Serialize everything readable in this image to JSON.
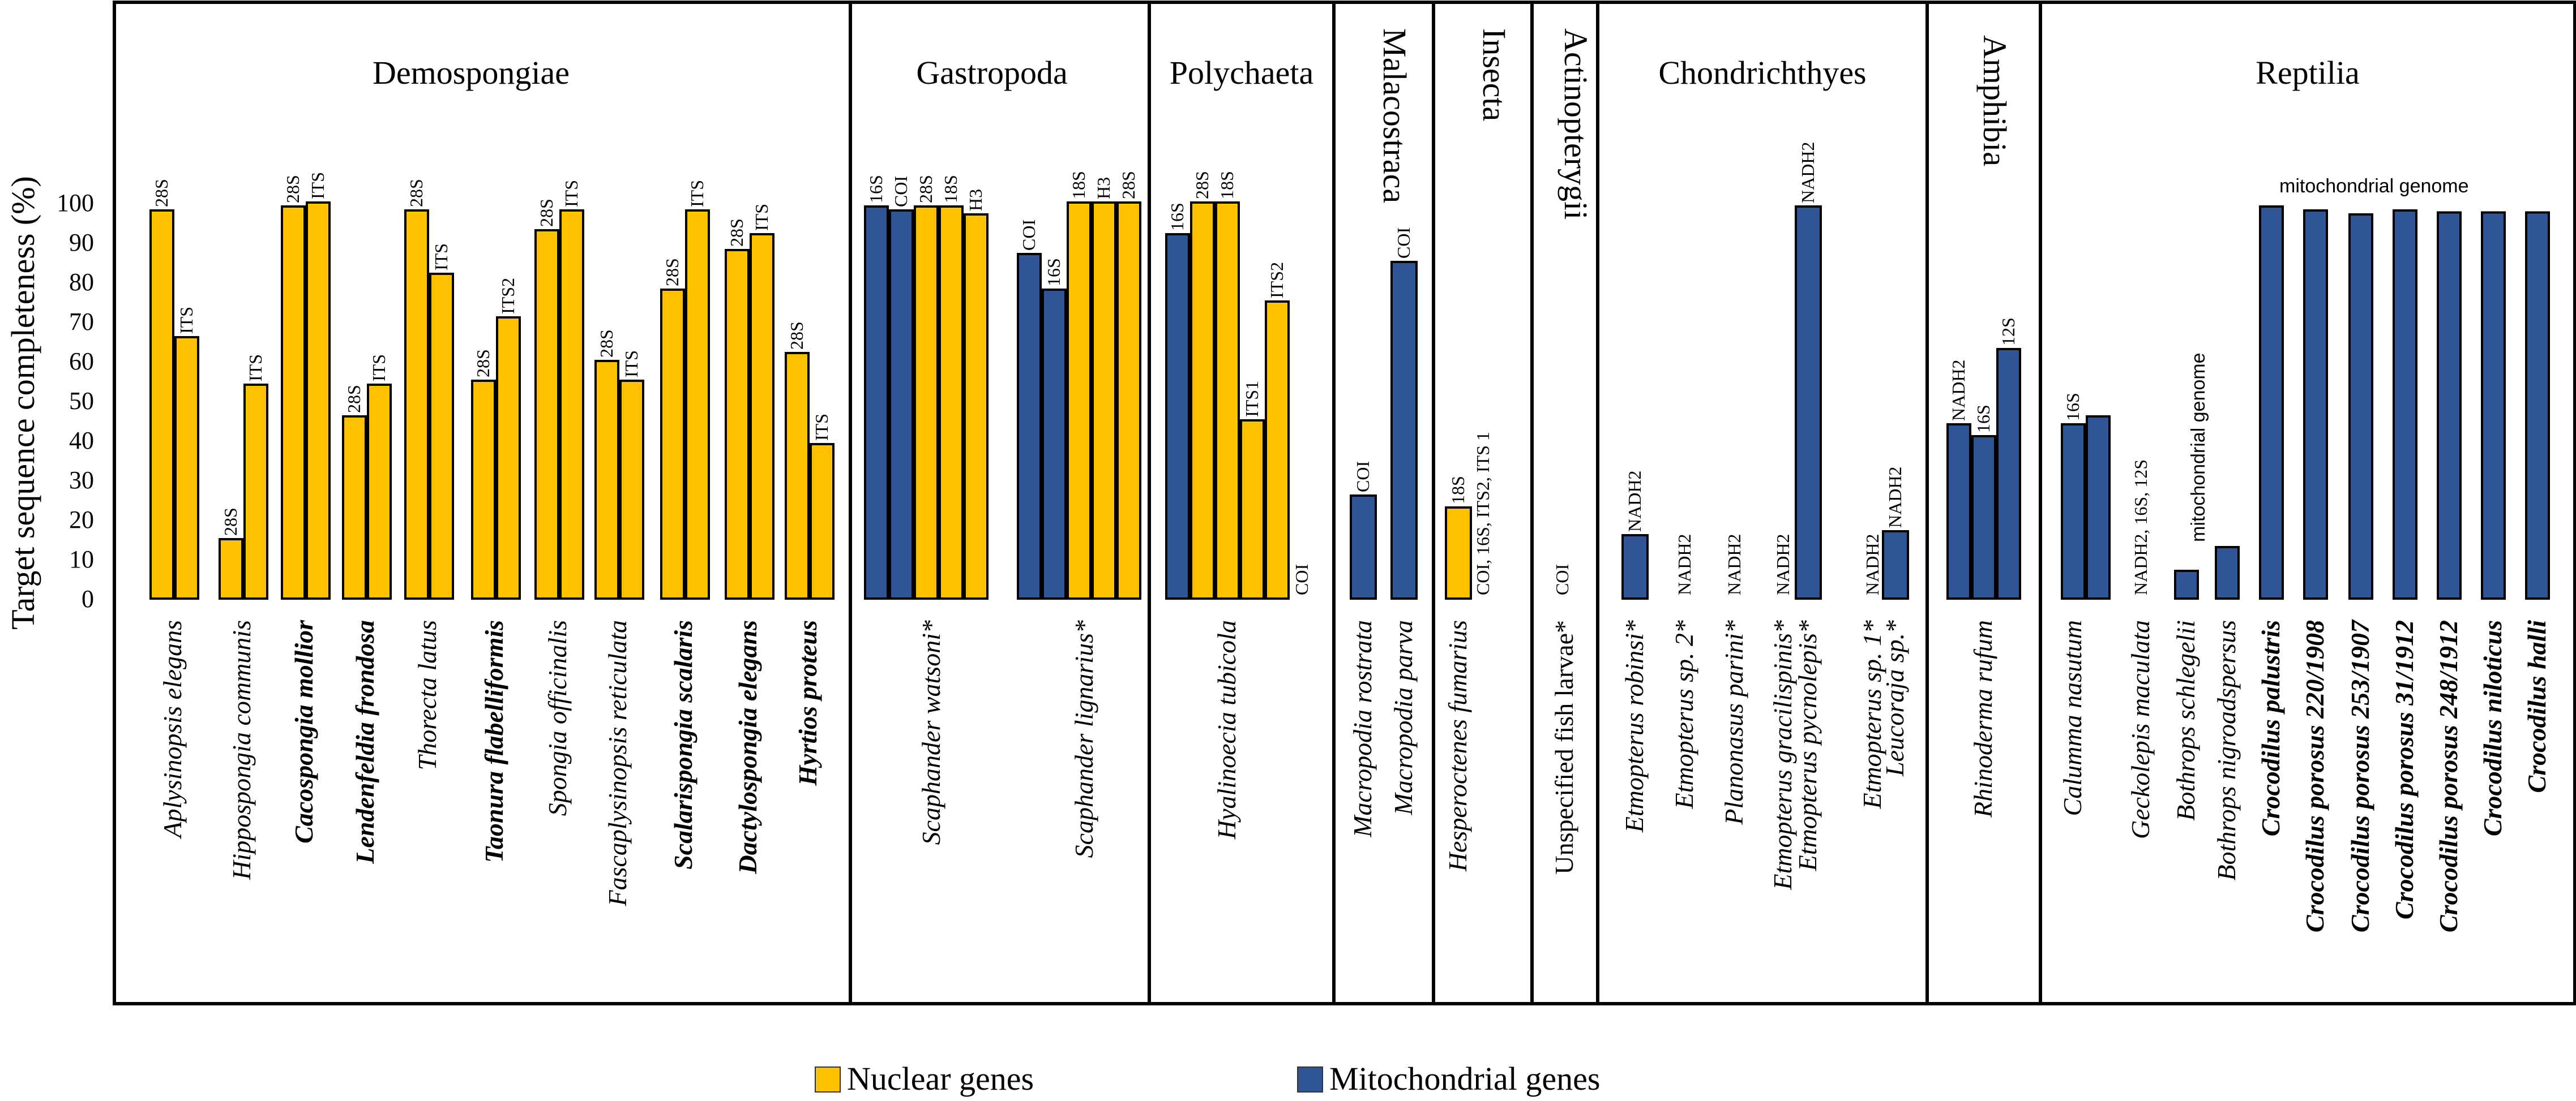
{
  "chart_data": {
    "type": "bar",
    "ylabel": "Target sequence completeness (%)",
    "ylim": [
      0,
      100
    ],
    "yticks": [
      0,
      10,
      20,
      30,
      40,
      50,
      60,
      70,
      80,
      90,
      100
    ],
    "colors": {
      "nuclear": "#FFC000",
      "mito": "#2F5597"
    },
    "legend": [
      {
        "key": "nuclear",
        "label": "Nuclear genes"
      },
      {
        "key": "mito",
        "label": "Mitochondrial genes"
      }
    ],
    "groups": [
      {
        "name": "Demospongiae",
        "taxa": [
          {
            "name": "Aplysinopsis elegans",
            "bold": false,
            "bars": [
              {
                "gene": "28S",
                "value": 98,
                "type": "nuclear"
              },
              {
                "gene": "ITS",
                "value": 66,
                "type": "nuclear"
              }
            ]
          },
          {
            "name": "Hippospongia communis",
            "bold": false,
            "bars": [
              {
                "gene": "28S",
                "value": 15,
                "type": "nuclear"
              },
              {
                "gene": "ITS",
                "value": 54,
                "type": "nuclear"
              }
            ]
          },
          {
            "name": "Cacospongia mollior",
            "bold": true,
            "bars": [
              {
                "gene": "28S",
                "value": 99,
                "type": "nuclear"
              },
              {
                "gene": "ITS",
                "value": 100,
                "type": "nuclear"
              }
            ]
          },
          {
            "name": "Lendenfeldia frondosa",
            "bold": true,
            "bars": [
              {
                "gene": "28S",
                "value": 46,
                "type": "nuclear"
              },
              {
                "gene": "ITS",
                "value": 54,
                "type": "nuclear"
              }
            ]
          },
          {
            "name": "Thorecta latus",
            "bold": false,
            "bars": [
              {
                "gene": "28S",
                "value": 98,
                "type": "nuclear"
              },
              {
                "gene": "ITS",
                "value": 82,
                "type": "nuclear"
              }
            ]
          },
          {
            "name": "Taonura flabelliformis",
            "bold": true,
            "bars": [
              {
                "gene": "28S",
                "value": 55,
                "type": "nuclear"
              },
              {
                "gene": "ITS2",
                "value": 71,
                "type": "nuclear"
              }
            ]
          },
          {
            "name": "Spongia officinalis",
            "bold": false,
            "bars": [
              {
                "gene": "28S",
                "value": 93,
                "type": "nuclear"
              },
              {
                "gene": "ITS",
                "value": 98,
                "type": "nuclear"
              }
            ]
          },
          {
            "name": "Fascaplysinopsis reticulata",
            "bold": false,
            "bars": [
              {
                "gene": "28S",
                "value": 60,
                "type": "nuclear"
              },
              {
                "gene": "ITS",
                "value": 55,
                "type": "nuclear"
              }
            ]
          },
          {
            "name": "Scalarispongia scalaris",
            "bold": true,
            "bars": [
              {
                "gene": "28S",
                "value": 78,
                "type": "nuclear"
              },
              {
                "gene": "ITS",
                "value": 98,
                "type": "nuclear"
              }
            ]
          },
          {
            "name": "Dactylospongia elegans",
            "bold": true,
            "bars": [
              {
                "gene": "28S",
                "value": 88,
                "type": "nuclear"
              },
              {
                "gene": "ITS",
                "value": 92,
                "type": "nuclear"
              }
            ]
          },
          {
            "name": "Hyrtios proteus",
            "bold": true,
            "bars": [
              {
                "gene": "28S",
                "value": 62,
                "type": "nuclear"
              },
              {
                "gene": "ITS",
                "value": 39,
                "type": "nuclear"
              }
            ]
          }
        ]
      },
      {
        "name": "Gastropoda",
        "taxa": [
          {
            "name": "Scaphander watsoni*",
            "bold": false,
            "bars": [
              {
                "gene": "16S",
                "value": 99,
                "type": "mito"
              },
              {
                "gene": "COI",
                "value": 98,
                "type": "mito"
              },
              {
                "gene": "28S",
                "value": 99,
                "type": "nuclear"
              },
              {
                "gene": "18S",
                "value": 99,
                "type": "nuclear"
              },
              {
                "gene": "H3",
                "value": 97,
                "type": "nuclear"
              }
            ]
          },
          {
            "name": "Scaphander lignarius*",
            "bold": false,
            "bars": [
              {
                "gene": "COI",
                "value": 87,
                "type": "mito"
              },
              {
                "gene": "16S",
                "value": 78,
                "type": "mito"
              },
              {
                "gene": "18S",
                "value": 100,
                "type": "nuclear"
              },
              {
                "gene": "H3",
                "value": 100,
                "type": "nuclear"
              },
              {
                "gene": "28S",
                "value": 100,
                "type": "nuclear"
              }
            ]
          }
        ]
      },
      {
        "name": "Polychaeta",
        "taxa": [
          {
            "name": "Hyalinoecia tubicola",
            "bold": false,
            "bars": [
              {
                "gene": "16S",
                "value": 92,
                "type": "mito"
              },
              {
                "gene": "28S",
                "value": 100,
                "type": "nuclear"
              },
              {
                "gene": "18S",
                "value": 100,
                "type": "nuclear"
              },
              {
                "gene": "ITS1",
                "value": 45,
                "type": "nuclear"
              },
              {
                "gene": "ITS2",
                "value": 75,
                "type": "nuclear"
              },
              {
                "gene": "COI",
                "value": 0,
                "type": "mito"
              }
            ]
          }
        ]
      },
      {
        "name": "Malacostraca",
        "taxa": [
          {
            "name": "Macropodia rostrata",
            "bold": false,
            "bars": [
              {
                "gene": "COI",
                "value": 26,
                "type": "mito"
              }
            ]
          },
          {
            "name": "Macropodia parva",
            "bold": false,
            "bars": [
              {
                "gene": "COI",
                "value": 85,
                "type": "mito"
              }
            ]
          }
        ]
      },
      {
        "name": "Insecta",
        "taxa": [
          {
            "name": "Hesperoctenes fumarius",
            "bold": false,
            "bars": [
              {
                "gene": "18S",
                "value": 23,
                "type": "nuclear"
              },
              {
                "gene": "COI, 16S, ITS2, ITS 1",
                "value": 0,
                "type": "nuclear"
              }
            ]
          }
        ]
      },
      {
        "name": "Actinopterygii",
        "taxa": [
          {
            "name": "Unspecified fish larvae*",
            "bold": false,
            "bars": [
              {
                "gene": "COI",
                "value": 0,
                "type": "mito"
              }
            ]
          }
        ]
      },
      {
        "name": "Chondrichthyes",
        "taxa": [
          {
            "name": "Etmopterus robinsi*",
            "bold": false,
            "bars": [
              {
                "gene": "NADH2",
                "value": 16,
                "type": "mito"
              }
            ]
          },
          {
            "name": "Etmopterus sp. 2*",
            "bold": false,
            "bars": [
              {
                "gene": "NADH2",
                "value": 0,
                "type": "mito"
              }
            ]
          },
          {
            "name": "Planonasus parini*",
            "bold": false,
            "bars": [
              {
                "gene": "NADH2",
                "value": 0,
                "type": "mito"
              }
            ]
          },
          {
            "name": "Etmopterus gracilispinis*",
            "bold": false,
            "bars": [
              {
                "gene": "NADH2",
                "value": 0,
                "type": "mito"
              }
            ]
          },
          {
            "name": "Etmopterus pycnolepis*",
            "bold": false,
            "bars": [
              {
                "gene": "NADH2",
                "value": 99,
                "type": "mito"
              }
            ]
          },
          {
            "name": "Etmopterus sp. 1*",
            "bold": false,
            "bars": [
              {
                "gene": "NADH2",
                "value": 0,
                "type": "mito"
              }
            ]
          },
          {
            "name": "Leucoraja sp.*",
            "bold": false,
            "bars": [
              {
                "gene": "NADH2",
                "value": 17,
                "type": "mito"
              }
            ]
          }
        ]
      },
      {
        "name": "Amphibia",
        "taxa": [
          {
            "name": "Rhinoderma rufum",
            "bold": false,
            "bars": [
              {
                "gene": "NADH2",
                "value": 44,
                "type": "mito"
              },
              {
                "gene": "16S",
                "value": 41,
                "type": "mito"
              },
              {
                "gene": "12S",
                "value": 63,
                "type": "mito"
              }
            ]
          }
        ]
      },
      {
        "name": "Reptilia",
        "taxa": [
          {
            "name": "Calumma nasutum",
            "bold": false,
            "bars": [
              {
                "gene": "16S",
                "value": 44,
                "type": "mito"
              },
              {
                "gene": "",
                "value": 46,
                "type": "mito"
              }
            ]
          },
          {
            "name": "Geckolepis maculata",
            "bold": false,
            "bars": [
              {
                "gene": "NADH2, 16S, 12S",
                "value": 0,
                "type": "mito"
              }
            ]
          },
          {
            "name": "Bothrops schlegelii",
            "bold": false,
            "bars": [
              {
                "gene": "",
                "value": 7,
                "type": "mito"
              }
            ]
          },
          {
            "name": "Bothrops nigroadspersus",
            "bold": false,
            "bars": [
              {
                "gene": "",
                "value": 13,
                "type": "mito"
              }
            ]
          },
          {
            "name": "Crocodilus palustris",
            "bold": true,
            "bars": [
              {
                "gene": "",
                "value": 99,
                "type": "mito"
              }
            ]
          },
          {
            "name": "Crocodilus porosus 220/1908",
            "bold": true,
            "bars": [
              {
                "gene": "",
                "value": 98,
                "type": "mito"
              }
            ]
          },
          {
            "name": "Crocodilus porosus 253/1907",
            "bold": true,
            "bars": [
              {
                "gene": "",
                "value": 97,
                "type": "mito"
              }
            ]
          },
          {
            "name": "Crocodilus porosus 31/1912",
            "bold": true,
            "bars": [
              {
                "gene": "",
                "value": 98,
                "type": "mito"
              }
            ]
          },
          {
            "name": "Crocodilus porosus 248/1912",
            "bold": true,
            "bars": [
              {
                "gene": "",
                "value": 97.5,
                "type": "mito"
              }
            ]
          },
          {
            "name": "Crocodilus niloticus",
            "bold": true,
            "bars": [
              {
                "gene": "",
                "value": 97.5,
                "type": "mito"
              }
            ]
          },
          {
            "name": "Crocodilus halli",
            "bold": true,
            "bars": [
              {
                "gene": "",
                "value": 97.5,
                "type": "mito"
              }
            ]
          }
        ]
      }
    ],
    "annotations": {
      "mito_genome_small": "mitochondrial genome",
      "mito_genome_large": "mitochondrial genome"
    }
  }
}
